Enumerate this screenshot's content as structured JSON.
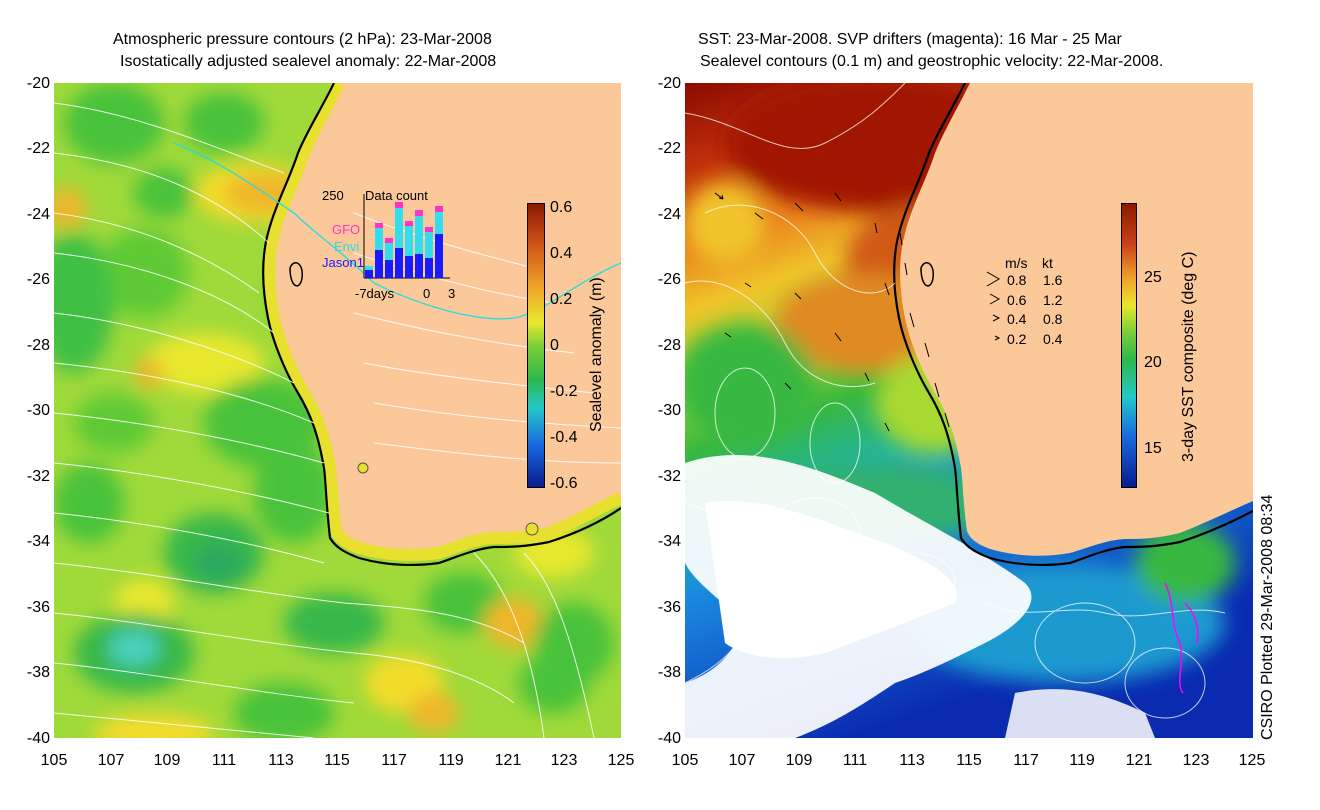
{
  "left": {
    "title_line1": "Atmospheric pressure contours (2 hPa): 23-Mar-2008",
    "title_line2": "Isostatically adjusted sealevel anomaly: 22-Mar-2008",
    "colorbar_label": "Sealevel anomaly (m)",
    "colorbar_ticks": [
      "0.6",
      "0.4",
      "0.2",
      "0",
      "-0.2",
      "-0.4",
      "-0.6"
    ],
    "inset": {
      "title": "Data count",
      "ymax_label": "250",
      "legend": [
        {
          "name": "GFO",
          "color": "#ff33cc"
        },
        {
          "name": "Envi",
          "color": "#33ddee"
        },
        {
          "name": "Jason1",
          "color": "#1a1aff"
        }
      ],
      "x_start_label": "-7days",
      "x_mid_label": "0",
      "x_end_label": "3"
    }
  },
  "right": {
    "title_line1": "SST: 23-Mar-2008. SVP drifters (magenta): 16 Mar - 25 Mar",
    "title_line2": "Sealevel contours (0.1 m) and geostrophic velocity: 22-Mar-2008.",
    "colorbar_label": "3-day SST composite (deg C)",
    "colorbar_ticks": [
      "25",
      "20",
      "15"
    ],
    "velocity_legend": {
      "header_ms": "m/s",
      "header_kt": "kt",
      "rows": [
        {
          "ms": "0.8",
          "kt": "1.6"
        },
        {
          "ms": "0.6",
          "kt": "1.2"
        },
        {
          "ms": "0.4",
          "kt": "0.8"
        },
        {
          "ms": "0.2",
          "kt": "0.4"
        }
      ]
    }
  },
  "axes": {
    "lat_ticks": [
      "-20",
      "-22",
      "-24",
      "-26",
      "-28",
      "-30",
      "-32",
      "-34",
      "-36",
      "-38",
      "-40"
    ],
    "lon_ticks": [
      "105",
      "107",
      "109",
      "111",
      "113",
      "115",
      "117",
      "119",
      "121",
      "123",
      "125"
    ],
    "lon_range": [
      105,
      125
    ],
    "lat_range": [
      -40,
      -20
    ]
  },
  "credit": "CSIRO Plotted 29-Mar-2008 08:34",
  "colors": {
    "land": "#fbc89a",
    "coast": "#000000",
    "contour": "#ffffff",
    "sst_hot": "#8b0a00",
    "sst_cold": "#0a2ab0"
  }
}
